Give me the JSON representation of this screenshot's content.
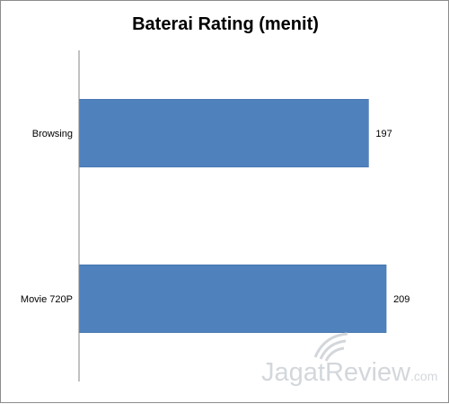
{
  "chart_data": {
    "type": "bar",
    "orientation": "horizontal",
    "title": "Baterai Rating (menit)",
    "categories": [
      "Browsing",
      "Movie 720P"
    ],
    "values": [
      197,
      209
    ],
    "value_labels": [
      "197",
      "209"
    ],
    "xlabel": "",
    "ylabel": "",
    "xlim": [
      0,
      245
    ],
    "grid": false,
    "legend": "none",
    "bar_color": "#4f81bd"
  },
  "watermark": {
    "text_part1": "Jagat",
    "text_part2": "Review",
    "suffix": ".com",
    "icon": "satellite-dish-icon"
  }
}
